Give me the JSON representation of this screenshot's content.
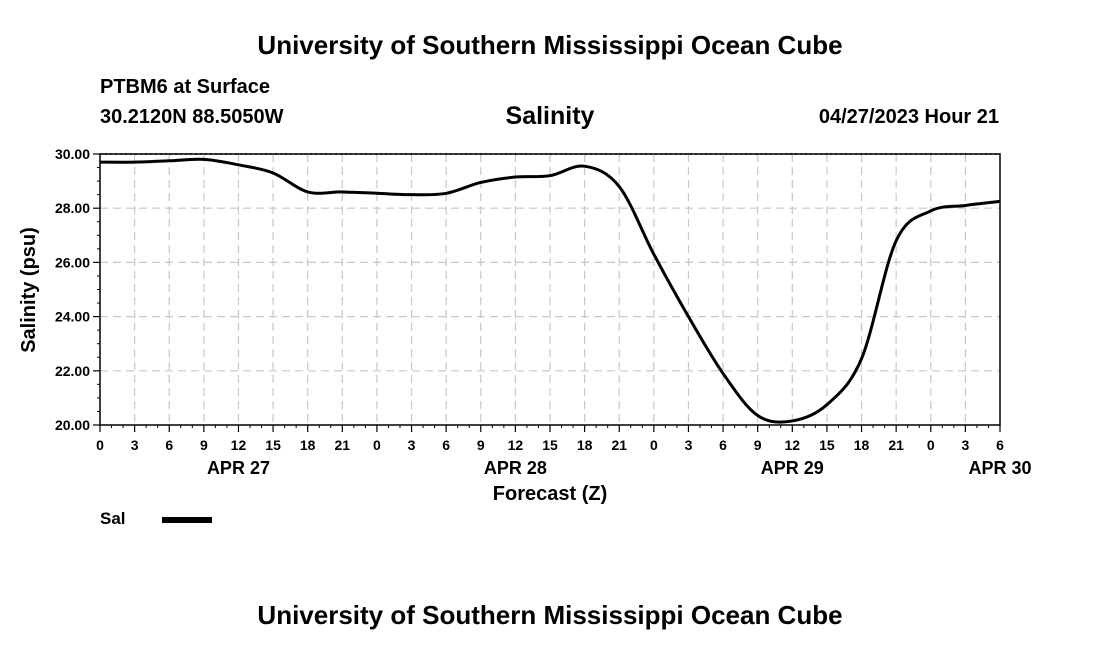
{
  "header": {
    "title": "University of Southern Mississippi Ocean Cube",
    "footer_title": "University of Southern Mississippi Ocean Cube",
    "station": "PTBM6 at Surface",
    "coords": "30.2120N  88.5050W",
    "datetime": "04/27/2023 Hour 21"
  },
  "colors": {
    "line": "#000000",
    "grid": "#c8c8c8",
    "background": "#ffffff"
  },
  "chart_data": {
    "type": "line",
    "title": "Salinity",
    "xlabel": "Forecast (Z)",
    "ylabel": "Salinity (psu)",
    "ylim": [
      20,
      30
    ],
    "xlim": [
      0,
      78
    ],
    "y_ticks": [
      "20.00",
      "22.00",
      "24.00",
      "26.00",
      "28.00",
      "30.00"
    ],
    "x_ticks": [
      "0",
      "3",
      "6",
      "9",
      "12",
      "15",
      "18",
      "21",
      "0",
      "3",
      "6",
      "9",
      "12",
      "15",
      "18",
      "21",
      "0",
      "3",
      "6",
      "9",
      "12",
      "15",
      "18",
      "21",
      "0",
      "3",
      "6"
    ],
    "day_labels": [
      {
        "label": "APR 27",
        "hour": 12
      },
      {
        "label": "APR 28",
        "hour": 36
      },
      {
        "label": "APR 29",
        "hour": 60
      },
      {
        "label": "APR 30",
        "hour": 78
      }
    ],
    "grid": true,
    "legend": [
      {
        "name": "Sal",
        "position": "bottom-left"
      }
    ],
    "series": [
      {
        "name": "Sal",
        "x": [
          0,
          3,
          6,
          9,
          12,
          15,
          18,
          21,
          24,
          27,
          30,
          33,
          36,
          39,
          42,
          45,
          48,
          51,
          54,
          57,
          60,
          63,
          66,
          69,
          72,
          75,
          78
        ],
        "values": [
          29.7,
          29.7,
          29.75,
          29.8,
          29.6,
          29.3,
          28.6,
          28.6,
          28.55,
          28.5,
          28.55,
          28.95,
          29.15,
          29.2,
          29.55,
          28.8,
          26.3,
          24.0,
          21.9,
          20.35,
          20.15,
          20.75,
          22.45,
          26.8,
          27.9,
          28.1,
          28.25
        ]
      }
    ]
  }
}
